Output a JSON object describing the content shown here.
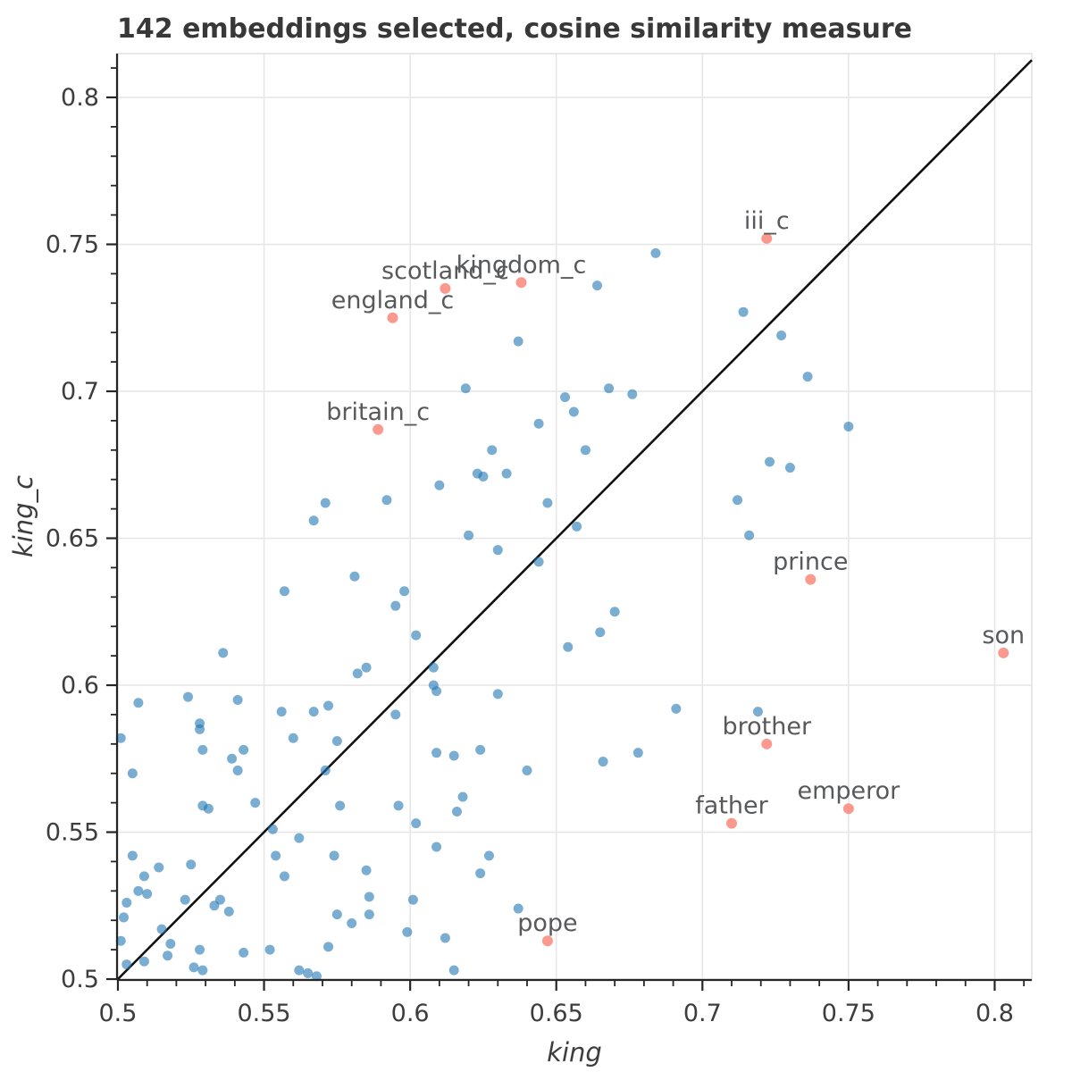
{
  "title": "142 embeddings selected, cosine similarity measure",
  "chart_data": {
    "type": "scatter",
    "title": "142 embeddings selected, cosine similarity measure",
    "xlabel": "king",
    "ylabel": "king_c",
    "xlim": [
      0.4997,
      0.8127
    ],
    "ylim": [
      0.4997,
      0.8149
    ],
    "major_ticks": [
      0.5,
      0.55,
      0.6,
      0.65,
      0.7,
      0.75,
      0.8
    ],
    "tick_labels": [
      "0.5",
      "0.55",
      "0.6",
      "0.65",
      "0.7",
      "0.75",
      "0.8"
    ],
    "minor_tick_step": 0.01,
    "grid": true,
    "legend": "none",
    "identity_line": true,
    "colors": {
      "points": "rgba(31,119,180,0.60)",
      "labeled_points": "rgba(250,128,114,0.80)",
      "grid": "#e7e7e7",
      "border": "#e2e2e2",
      "spine": "#262626",
      "identity_line": "#111111",
      "annotation": "#58595b",
      "title": "#383838",
      "tick_label": "#3d3d3d"
    },
    "series": [
      {
        "name": "embeddings",
        "marker": "circle",
        "points": [
          [
            0.684,
            0.747
          ],
          [
            0.664,
            0.736
          ],
          [
            0.637,
            0.717
          ],
          [
            0.714,
            0.727
          ],
          [
            0.727,
            0.719
          ],
          [
            0.619,
            0.701
          ],
          [
            0.668,
            0.701
          ],
          [
            0.653,
            0.698
          ],
          [
            0.676,
            0.699
          ],
          [
            0.656,
            0.693
          ],
          [
            0.644,
            0.689
          ],
          [
            0.628,
            0.68
          ],
          [
            0.66,
            0.68
          ],
          [
            0.633,
            0.672
          ],
          [
            0.623,
            0.672
          ],
          [
            0.625,
            0.671
          ],
          [
            0.61,
            0.668
          ],
          [
            0.647,
            0.662
          ],
          [
            0.657,
            0.654
          ],
          [
            0.62,
            0.651
          ],
          [
            0.63,
            0.646
          ],
          [
            0.644,
            0.642
          ],
          [
            0.67,
            0.625
          ],
          [
            0.665,
            0.618
          ],
          [
            0.654,
            0.613
          ],
          [
            0.571,
            0.662
          ],
          [
            0.592,
            0.663
          ],
          [
            0.567,
            0.656
          ],
          [
            0.581,
            0.637
          ],
          [
            0.557,
            0.632
          ],
          [
            0.598,
            0.632
          ],
          [
            0.595,
            0.627
          ],
          [
            0.602,
            0.617
          ],
          [
            0.536,
            0.611
          ],
          [
            0.736,
            0.705
          ],
          [
            0.75,
            0.688
          ],
          [
            0.723,
            0.676
          ],
          [
            0.73,
            0.674
          ],
          [
            0.712,
            0.663
          ],
          [
            0.716,
            0.651
          ],
          [
            0.582,
            0.604
          ],
          [
            0.585,
            0.606
          ],
          [
            0.507,
            0.594
          ],
          [
            0.524,
            0.596
          ],
          [
            0.541,
            0.595
          ],
          [
            0.556,
            0.591
          ],
          [
            0.567,
            0.591
          ],
          [
            0.572,
            0.593
          ],
          [
            0.595,
            0.59
          ],
          [
            0.501,
            0.582
          ],
          [
            0.528,
            0.587
          ],
          [
            0.528,
            0.585
          ],
          [
            0.56,
            0.582
          ],
          [
            0.575,
            0.581
          ],
          [
            0.529,
            0.578
          ],
          [
            0.539,
            0.575
          ],
          [
            0.543,
            0.578
          ],
          [
            0.541,
            0.571
          ],
          [
            0.505,
            0.57
          ],
          [
            0.571,
            0.571
          ],
          [
            0.529,
            0.559
          ],
          [
            0.531,
            0.558
          ],
          [
            0.547,
            0.56
          ],
          [
            0.576,
            0.559
          ],
          [
            0.596,
            0.559
          ],
          [
            0.602,
            0.553
          ],
          [
            0.553,
            0.551
          ],
          [
            0.562,
            0.548
          ],
          [
            0.505,
            0.542
          ],
          [
            0.514,
            0.538
          ],
          [
            0.525,
            0.539
          ],
          [
            0.509,
            0.535
          ],
          [
            0.507,
            0.53
          ],
          [
            0.51,
            0.529
          ],
          [
            0.503,
            0.526
          ],
          [
            0.502,
            0.521
          ],
          [
            0.523,
            0.527
          ],
          [
            0.535,
            0.527
          ],
          [
            0.533,
            0.525
          ],
          [
            0.538,
            0.523
          ],
          [
            0.501,
            0.513
          ],
          [
            0.515,
            0.517
          ],
          [
            0.518,
            0.512
          ],
          [
            0.517,
            0.508
          ],
          [
            0.528,
            0.51
          ],
          [
            0.509,
            0.506
          ],
          [
            0.503,
            0.505
          ],
          [
            0.526,
            0.504
          ],
          [
            0.529,
            0.503
          ],
          [
            0.543,
            0.509
          ],
          [
            0.554,
            0.542
          ],
          [
            0.557,
            0.535
          ],
          [
            0.574,
            0.542
          ],
          [
            0.575,
            0.522
          ],
          [
            0.562,
            0.503
          ],
          [
            0.565,
            0.502
          ],
          [
            0.568,
            0.501
          ],
          [
            0.552,
            0.51
          ],
          [
            0.572,
            0.511
          ],
          [
            0.586,
            0.528
          ],
          [
            0.586,
            0.522
          ],
          [
            0.58,
            0.519
          ],
          [
            0.585,
            0.537
          ],
          [
            0.599,
            0.516
          ],
          [
            0.601,
            0.527
          ],
          [
            0.608,
            0.606
          ],
          [
            0.608,
            0.6
          ],
          [
            0.609,
            0.598
          ],
          [
            0.63,
            0.597
          ],
          [
            0.691,
            0.592
          ],
          [
            0.609,
            0.577
          ],
          [
            0.615,
            0.576
          ],
          [
            0.624,
            0.578
          ],
          [
            0.678,
            0.577
          ],
          [
            0.666,
            0.574
          ],
          [
            0.64,
            0.571
          ],
          [
            0.618,
            0.562
          ],
          [
            0.616,
            0.557
          ],
          [
            0.609,
            0.545
          ],
          [
            0.627,
            0.542
          ],
          [
            0.624,
            0.536
          ],
          [
            0.637,
            0.524
          ],
          [
            0.612,
            0.514
          ],
          [
            0.615,
            0.503
          ],
          [
            0.719,
            0.591
          ]
        ]
      },
      {
        "name": "labeled_embeddings",
        "marker": "circle",
        "labeled_points": [
          {
            "label": "iii_c",
            "x": 0.722,
            "y": 0.752
          },
          {
            "label": "kingdom_c",
            "x": 0.638,
            "y": 0.737
          },
          {
            "label": "scotland_c",
            "x": 0.612,
            "y": 0.735
          },
          {
            "label": "england_c",
            "x": 0.594,
            "y": 0.725
          },
          {
            "label": "britain_c",
            "x": 0.589,
            "y": 0.687
          },
          {
            "label": "prince",
            "x": 0.737,
            "y": 0.636
          },
          {
            "label": "son",
            "x": 0.803,
            "y": 0.611
          },
          {
            "label": "brother",
            "x": 0.722,
            "y": 0.58
          },
          {
            "label": "emperor",
            "x": 0.75,
            "y": 0.558
          },
          {
            "label": "father",
            "x": 0.71,
            "y": 0.553
          },
          {
            "label": "pope",
            "x": 0.647,
            "y": 0.513
          }
        ]
      }
    ]
  }
}
